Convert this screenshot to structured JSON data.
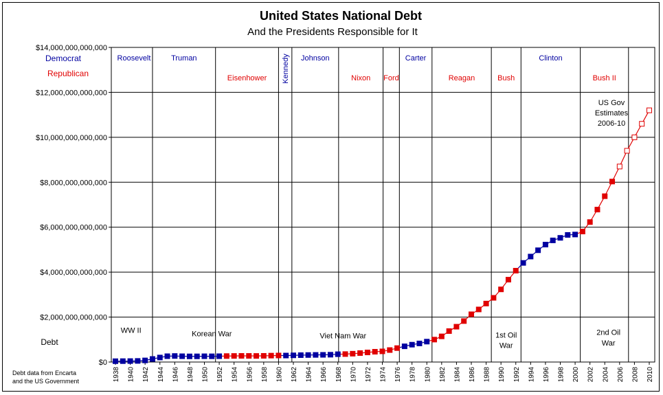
{
  "chart_data": {
    "type": "line",
    "title": "United States National Debt",
    "subtitle": "And the Presidents Responsible for It",
    "ylabel": "Debt",
    "ylim": [
      0,
      14000000000000
    ],
    "y_ticks": [
      {
        "value": 0,
        "label": "$0"
      },
      {
        "value": 2000000000000,
        "label": "$2,000,000,000,000"
      },
      {
        "value": 4000000000000,
        "label": "$4,000,000,000,000"
      },
      {
        "value": 6000000000000,
        "label": "$6,000,000,000,000"
      },
      {
        "value": 8000000000000,
        "label": "$8,000,000,000,000"
      },
      {
        "value": 10000000000000,
        "label": "$10,000,000,000,000"
      },
      {
        "value": 12000000000000,
        "label": "$12,000,000,000,000"
      },
      {
        "value": 14000000000000,
        "label": "$14,000,000,000,000"
      }
    ],
    "xlim": [
      1938,
      2010
    ],
    "x_ticks": [
      "1938",
      "1940",
      "1942",
      "1944",
      "1946",
      "1948",
      "1950",
      "1952",
      "1954",
      "1956",
      "1958",
      "1960",
      "1962",
      "1964",
      "1966",
      "1968",
      "1970",
      "1972",
      "1974",
      "1976",
      "1978",
      "1980",
      "1982",
      "1984",
      "1986",
      "1988",
      "1990",
      "1992",
      "1994",
      "1996",
      "1998",
      "2000",
      "2002",
      "2004",
      "2006",
      "2008",
      "2010"
    ],
    "legend": {
      "democrat": "Democrat",
      "republican": "Republican",
      "democrat_color": "#0000a0",
      "republican_color": "#e00000"
    },
    "series": {
      "name": "Debt",
      "x": [
        1938,
        1939,
        1940,
        1941,
        1942,
        1943,
        1944,
        1945,
        1946,
        1947,
        1948,
        1949,
        1950,
        1951,
        1952,
        1953,
        1954,
        1955,
        1956,
        1957,
        1958,
        1959,
        1960,
        1961,
        1962,
        1963,
        1964,
        1965,
        1966,
        1967,
        1968,
        1969,
        1970,
        1971,
        1972,
        1973,
        1974,
        1975,
        1976,
        1977,
        1978,
        1979,
        1980,
        1981,
        1982,
        1983,
        1984,
        1985,
        1986,
        1987,
        1988,
        1989,
        1990,
        1991,
        1992,
        1993,
        1994,
        1995,
        1996,
        1997,
        1998,
        1999,
        2000,
        2001,
        2002,
        2003,
        2004,
        2005,
        2006,
        2007,
        2008,
        2009,
        2010
      ],
      "values": [
        37000000000,
        40000000000,
        43000000000,
        49000000000,
        72000000000,
        137000000000,
        201000000000,
        259000000000,
        269000000000,
        258000000000,
        252000000000,
        253000000000,
        257000000000,
        255000000000,
        259000000000,
        266000000000,
        271000000000,
        274000000000,
        273000000000,
        271000000000,
        276000000000,
        285000000000,
        291000000000,
        289000000000,
        298000000000,
        306000000000,
        312000000000,
        317000000000,
        320000000000,
        326000000000,
        348000000000,
        354000000000,
        371000000000,
        398000000000,
        427000000000,
        458000000000,
        475000000000,
        533000000000,
        620000000000,
        699000000000,
        772000000000,
        827000000000,
        908000000000,
        998000000000,
        1142000000000,
        1377000000000,
        1572000000000,
        1823000000000,
        2125000000000,
        2340000000000,
        2602000000000,
        2857000000000,
        3233000000000,
        3665000000000,
        4065000000000,
        4411000000000,
        4693000000000,
        4974000000000,
        5225000000000,
        5413000000000,
        5526000000000,
        5656000000000,
        5674000000000,
        5807000000000,
        6228000000000,
        6783000000000,
        7379000000000,
        8031000000000,
        8700000000000,
        9400000000000,
        10000000000000,
        10600000000000,
        11200000000000
      ],
      "party": [
        "D",
        "D",
        "D",
        "D",
        "D",
        "D",
        "D",
        "D",
        "D",
        "D",
        "D",
        "D",
        "D",
        "D",
        "D",
        "R",
        "R",
        "R",
        "R",
        "R",
        "R",
        "R",
        "R",
        "D",
        "D",
        "D",
        "D",
        "D",
        "D",
        "D",
        "D",
        "R",
        "R",
        "R",
        "R",
        "R",
        "R",
        "R",
        "R",
        "D",
        "D",
        "D",
        "D",
        "R",
        "R",
        "R",
        "R",
        "R",
        "R",
        "R",
        "R",
        "R",
        "R",
        "R",
        "R",
        "D",
        "D",
        "D",
        "D",
        "D",
        "D",
        "D",
        "D",
        "R",
        "R",
        "R",
        "R",
        "R",
        "R",
        "R",
        "R",
        "R",
        "R"
      ],
      "estimated_from": 2006
    },
    "presidents": [
      {
        "name": "Roosevelt",
        "party": "D",
        "start": 1938,
        "end": 1943
      },
      {
        "name": "Truman",
        "party": "D",
        "start": 1943,
        "end": 1951.5
      },
      {
        "name": "Eisenhower",
        "party": "R",
        "start": 1951.5,
        "end": 1960
      },
      {
        "name": "Kennedy",
        "party": "D",
        "start": 1960,
        "end": 1961.8
      },
      {
        "name": "Johnson",
        "party": "D",
        "start": 1961.8,
        "end": 1968.1
      },
      {
        "name": "Nixon",
        "party": "R",
        "start": 1968.1,
        "end": 1974.1
      },
      {
        "name": "Ford",
        "party": "R",
        "start": 1974.1,
        "end": 1976.3
      },
      {
        "name": "Carter",
        "party": "D",
        "start": 1976.3,
        "end": 1980.7
      },
      {
        "name": "Reagan",
        "party": "R",
        "start": 1980.7,
        "end": 1988.7
      },
      {
        "name": "Bush",
        "party": "R",
        "start": 1988.7,
        "end": 1992.7
      },
      {
        "name": "Clinton",
        "party": "D",
        "start": 1992.7,
        "end": 2000.7
      },
      {
        "name": "Bush II",
        "party": "R",
        "start": 2000.7,
        "end": 2007.2
      }
    ],
    "events": [
      {
        "label": "WW II",
        "x": 1940.1,
        "y": 1300000000000
      },
      {
        "label": "Korean War",
        "x": 1951,
        "y": 1150000000000
      },
      {
        "label": "Viet Nam War",
        "x": 1968.7,
        "y": 1050000000000
      },
      {
        "label": "1st Oil",
        "x": 1990.7,
        "y": 1080000000000
      },
      {
        "label": "War",
        "x": 1990.7,
        "y": 620000000000
      },
      {
        "label": "2nd Oil",
        "x": 2004.5,
        "y": 1200000000000
      },
      {
        "label": "War",
        "x": 2004.5,
        "y": 740000000000
      }
    ],
    "annotation": [
      "US Gov",
      "Estimates",
      "2006-10"
    ],
    "source_note": [
      "Debt data from Encarta",
      "and the US Government"
    ]
  }
}
